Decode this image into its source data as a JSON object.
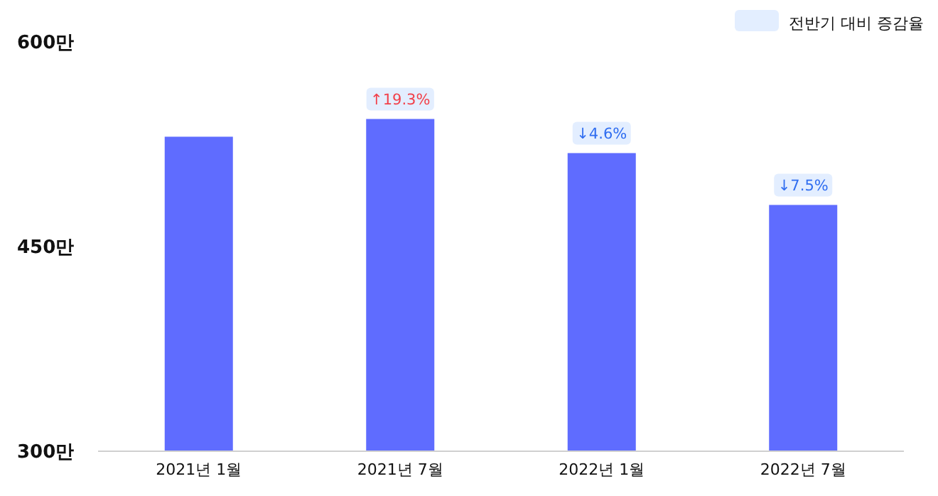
{
  "chart_data": {
    "type": "bar",
    "categories": [
      "2021년 1월",
      "2021년 7월",
      "2022년 1월",
      "2022년 7월"
    ],
    "values": [
      530,
      543,
      518,
      480
    ],
    "annotations": [
      {
        "text": "↑19.3%",
        "x": "2021년 7월",
        "y": 543
      },
      {
        "text": "↓4.6%",
        "x": "2022년 1월",
        "y": 518
      },
      {
        "text": "↓7.5%",
        "x": "2022년 7월",
        "y": 480
      }
    ],
    "color": "#5f6cff",
    "ylim": [
      300,
      600
    ],
    "yticks": [
      {
        "value": 300,
        "label": "300만"
      },
      {
        "value": 450,
        "label": "450만"
      },
      {
        "value": 600,
        "label": "600만"
      }
    ],
    "legend_title": "전반기 대비 증감율",
    "grid": false
  }
}
